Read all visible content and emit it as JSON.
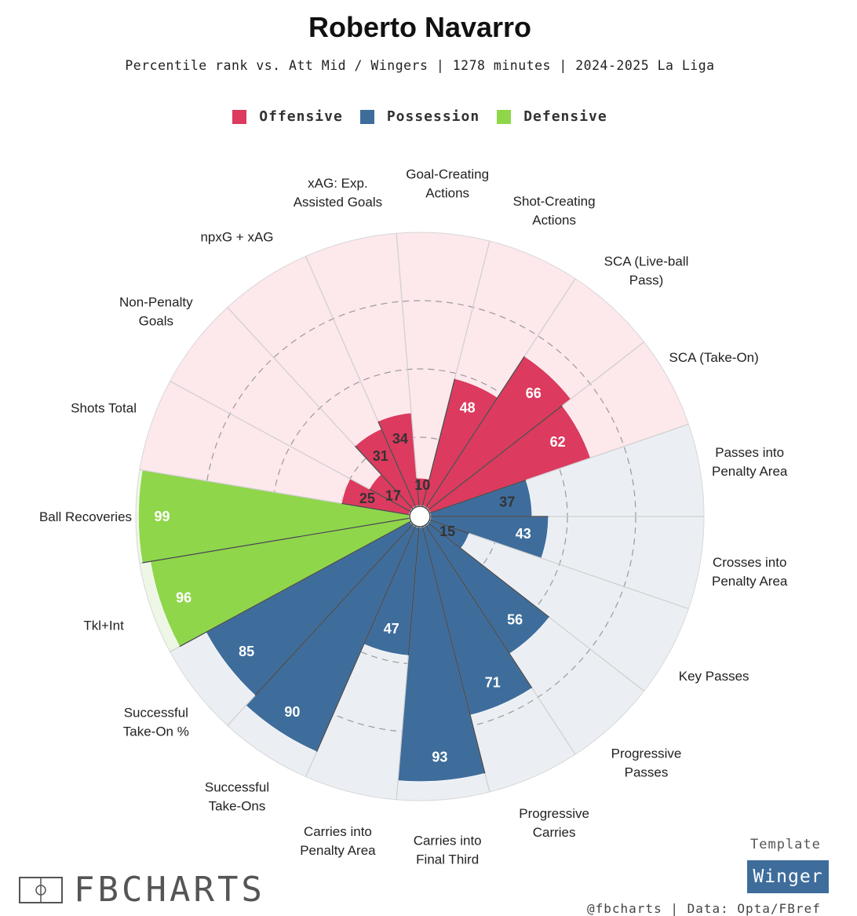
{
  "header": {
    "title": "Roberto Navarro",
    "subtitle": "Percentile rank vs. Att Mid / Wingers | 1278 minutes | 2024-2025 La Liga"
  },
  "legend": {
    "items": [
      {
        "label": "Offensive",
        "color": "#dc3a5e"
      },
      {
        "label": "Possession",
        "color": "#3e6d9c"
      },
      {
        "label": "Defensive",
        "color": "#8fd64b"
      }
    ]
  },
  "chart_data": {
    "type": "pie",
    "subtype": "polar-area (pizza) percentile chart",
    "scale": [
      0,
      100
    ],
    "grid": "dashed rings at 25, 50, 75",
    "categories": [
      {
        "name": "Offensive",
        "color": "#dc3a5e",
        "background": "#fde8ec"
      },
      {
        "name": "Possession",
        "color": "#3e6d9c",
        "background": "#ebeff4"
      },
      {
        "name": "Defensive",
        "color": "#8fd64b",
        "background": "#eef7e6"
      }
    ],
    "metrics": [
      {
        "label": "Shots Total",
        "value": 25,
        "category": "Offensive"
      },
      {
        "label": "Non-Penalty Goals",
        "value": 17,
        "category": "Offensive"
      },
      {
        "label": "npxG + xAG",
        "value": 31,
        "category": "Offensive"
      },
      {
        "label": "xAG: Exp. Assisted Goals",
        "value": 34,
        "category": "Offensive"
      },
      {
        "label": "Goal-Creating Actions",
        "value": 10,
        "category": "Offensive"
      },
      {
        "label": "Shot-Creating Actions",
        "value": 48,
        "category": "Offensive"
      },
      {
        "label": "SCA (Live-ball Pass)",
        "value": 66,
        "category": "Offensive"
      },
      {
        "label": "SCA (Take-On)",
        "value": 62,
        "category": "Offensive"
      },
      {
        "label": "Passes into Penalty Area",
        "value": 37,
        "category": "Possession"
      },
      {
        "label": "Crosses into Penalty Area",
        "value": 43,
        "category": "Possession"
      },
      {
        "label": "Key Passes",
        "value": 15,
        "category": "Possession"
      },
      {
        "label": "Progressive Passes",
        "value": 56,
        "category": "Possession"
      },
      {
        "label": "Progressive Carries",
        "value": 71,
        "category": "Possession"
      },
      {
        "label": "Carries into Final Third",
        "value": 93,
        "category": "Possession"
      },
      {
        "label": "Carries into Penalty Area",
        "value": 47,
        "category": "Possession"
      },
      {
        "label": "Successful Take-Ons",
        "value": 90,
        "category": "Possession"
      },
      {
        "label": "Successful Take-On %",
        "value": 85,
        "category": "Possession"
      },
      {
        "label": "Tkl+Int",
        "value": 96,
        "category": "Defensive"
      },
      {
        "label": "Ball Recoveries",
        "value": 99,
        "category": "Defensive"
      }
    ]
  },
  "branding": {
    "logo_text": "FBCHARTS",
    "template_label": "Template",
    "template_name": "Winger",
    "footer": "@fbcharts | Data: Opta/FBref"
  }
}
